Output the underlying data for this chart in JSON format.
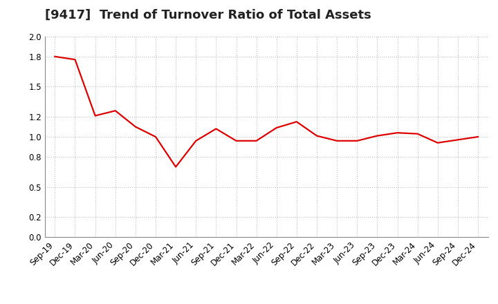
{
  "title": "[9417]  Trend of Turnover Ratio of Total Assets",
  "x_labels": [
    "Sep-19",
    "Dec-19",
    "Mar-20",
    "Jun-20",
    "Sep-20",
    "Dec-20",
    "Mar-21",
    "Jun-21",
    "Sep-21",
    "Dec-21",
    "Mar-22",
    "Jun-22",
    "Sep-22",
    "Dec-22",
    "Mar-23",
    "Jun-23",
    "Sep-23",
    "Dec-23",
    "Mar-24",
    "Jun-24",
    "Sep-24",
    "Dec-24"
  ],
  "values": [
    1.8,
    1.77,
    1.21,
    1.26,
    1.1,
    1.0,
    0.7,
    0.96,
    1.08,
    0.96,
    0.96,
    1.09,
    1.15,
    1.01,
    0.96,
    0.96,
    1.01,
    1.04,
    1.03,
    0.94,
    0.97,
    1.0
  ],
  "line_color": "#dd0000",
  "background_color": "#ffffff",
  "grid_color": "#b0b0b0",
  "ylim": [
    0.0,
    2.0
  ],
  "yticks": [
    0.0,
    0.2,
    0.5,
    0.8,
    1.0,
    1.2,
    1.5,
    1.8,
    2.0
  ],
  "title_fontsize": 13,
  "tick_fontsize": 8.5,
  "line_width": 1.6
}
